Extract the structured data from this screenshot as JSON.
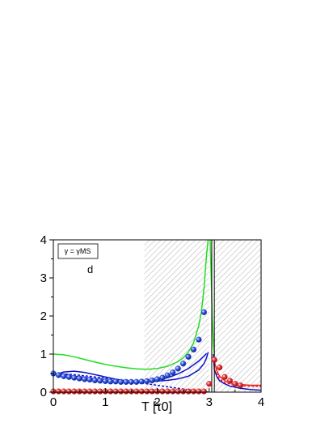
{
  "chart_data": {
    "type": "line",
    "title": "",
    "xlabel": "T [τ0]",
    "ylabel": "",
    "xlim": [
      0,
      4
    ],
    "ylim": [
      0,
      4
    ],
    "x_ticks": [
      "0",
      "1",
      "2",
      "3",
      "4"
    ],
    "y_ticks": [
      "0",
      "1",
      "2",
      "3",
      "4"
    ],
    "legend_text": "γ = γMS",
    "panel_label": "d",
    "shaded_regions": [
      [
        1.75,
        3.0
      ],
      [
        3.1,
        4.0
      ]
    ],
    "vertical_lines": [
      3.05,
      3.1
    ],
    "series": [
      {
        "color": "#22dd22",
        "style": "solid",
        "x": [
          0.0,
          0.2,
          0.4,
          0.6,
          0.8,
          1.0,
          1.2,
          1.4,
          1.6,
          1.8,
          2.0,
          2.2,
          2.4,
          2.5,
          2.6,
          2.7,
          2.8,
          2.85,
          2.9,
          2.95,
          2.98
        ],
        "y": [
          1.0,
          0.98,
          0.93,
          0.86,
          0.79,
          0.73,
          0.68,
          0.64,
          0.61,
          0.6,
          0.62,
          0.68,
          0.8,
          0.9,
          1.05,
          1.3,
          1.75,
          2.1,
          2.7,
          3.6,
          4.0
        ]
      },
      {
        "color": "#22dd22",
        "style": "solid",
        "x": [
          3.02,
          3.04,
          3.06,
          3.08,
          3.1
        ],
        "y": [
          4.0,
          3.0,
          2.0,
          1.3,
          1.0
        ]
      },
      {
        "color": "#1111cc",
        "style": "solid",
        "x": [
          0.0,
          0.2,
          0.4,
          0.6,
          0.8,
          1.0,
          1.2,
          1.4,
          1.6,
          1.8,
          2.0,
          2.2,
          2.4,
          2.6,
          2.8,
          2.9,
          2.95,
          2.98
        ],
        "y": [
          0.45,
          0.53,
          0.55,
          0.52,
          0.46,
          0.4,
          0.34,
          0.3,
          0.28,
          0.28,
          0.29,
          0.31,
          0.35,
          0.42,
          0.58,
          0.75,
          0.9,
          1.05
        ]
      },
      {
        "color": "#1111cc",
        "style": "solid",
        "x": [
          0.0,
          0.2,
          0.4,
          0.6,
          0.8,
          1.0,
          1.2,
          1.4,
          1.6,
          1.8,
          2.0,
          2.2,
          2.4,
          2.6,
          2.8,
          2.9,
          2.95
        ],
        "y": [
          0.48,
          0.44,
          0.42,
          0.39,
          0.35,
          0.32,
          0.3,
          0.28,
          0.28,
          0.29,
          0.32,
          0.38,
          0.48,
          0.62,
          0.82,
          0.95,
          1.02
        ]
      },
      {
        "color": "#1111cc",
        "style": "dashed",
        "x": [
          0.0,
          0.4,
          0.8,
          1.2,
          1.6,
          2.0,
          2.4,
          2.8,
          3.0
        ],
        "y": [
          0.5,
          0.46,
          0.4,
          0.33,
          0.26,
          0.18,
          0.1,
          0.03,
          0.0
        ]
      },
      {
        "color": "#1111cc",
        "style": "solid",
        "x": [
          3.08,
          3.1,
          3.15,
          3.2,
          3.3,
          3.4,
          3.6,
          3.8,
          4.0
        ],
        "y": [
          1.0,
          0.6,
          0.4,
          0.3,
          0.22,
          0.16,
          0.1,
          0.07,
          0.05
        ]
      },
      {
        "color": "#ee2222",
        "style": "solid",
        "x": [
          3.1,
          3.15,
          3.2,
          3.3,
          3.4,
          3.6,
          3.8,
          4.0
        ],
        "y": [
          0.8,
          0.55,
          0.42,
          0.3,
          0.24,
          0.2,
          0.18,
          0.18
        ]
      },
      {
        "color": "#ee2222",
        "style": "dashed",
        "x": [
          3.1,
          3.2,
          3.3,
          3.5,
          3.7,
          4.0
        ],
        "y": [
          0.6,
          0.35,
          0.25,
          0.18,
          0.16,
          0.15
        ]
      },
      {
        "color": "#ee2222",
        "style": "solid",
        "x": [
          0.0,
          1.0,
          2.0,
          2.95
        ],
        "y": [
          0.02,
          0.02,
          0.02,
          0.02
        ]
      }
    ],
    "markers": [
      {
        "color": "#1a3ec8",
        "x": [
          0.0,
          0.1,
          0.2,
          0.3,
          0.4,
          0.5,
          0.6,
          0.7,
          0.8,
          0.9,
          1.0,
          1.1,
          1.2,
          1.3,
          1.4,
          1.5,
          1.6,
          1.7,
          1.8,
          1.9,
          2.0,
          2.1,
          2.2,
          2.3,
          2.4,
          2.5,
          2.6,
          2.7,
          2.8,
          2.9
        ],
        "y": [
          0.49,
          0.45,
          0.42,
          0.4,
          0.38,
          0.36,
          0.34,
          0.33,
          0.31,
          0.3,
          0.29,
          0.28,
          0.28,
          0.27,
          0.27,
          0.27,
          0.27,
          0.28,
          0.29,
          0.31,
          0.34,
          0.38,
          0.44,
          0.52,
          0.62,
          0.75,
          0.93,
          1.12,
          1.38,
          2.1
        ]
      },
      {
        "color": "#dd2222",
        "x": [
          0.0,
          0.1,
          0.2,
          0.3,
          0.4,
          0.5,
          0.6,
          0.7,
          0.8,
          0.9,
          1.0,
          1.1,
          1.2,
          1.3,
          1.4,
          1.5,
          1.6,
          1.7,
          1.8,
          1.9,
          2.0,
          2.1,
          2.2,
          2.3,
          2.4,
          2.5,
          2.6,
          2.7,
          2.8,
          2.9
        ],
        "y": [
          0.02,
          0.02,
          0.02,
          0.02,
          0.02,
          0.02,
          0.02,
          0.02,
          0.02,
          0.02,
          0.02,
          0.02,
          0.02,
          0.02,
          0.02,
          0.02,
          0.02,
          0.02,
          0.02,
          0.02,
          0.02,
          0.02,
          0.02,
          0.02,
          0.02,
          0.02,
          0.02,
          0.02,
          0.02,
          0.02
        ]
      },
      {
        "color": "#dd2222",
        "x": [
          3.0,
          3.1,
          3.2,
          3.3,
          3.4,
          3.5,
          3.6
        ],
        "y": [
          0.22,
          0.85,
          0.65,
          0.4,
          0.3,
          0.22,
          0.18
        ]
      }
    ]
  }
}
